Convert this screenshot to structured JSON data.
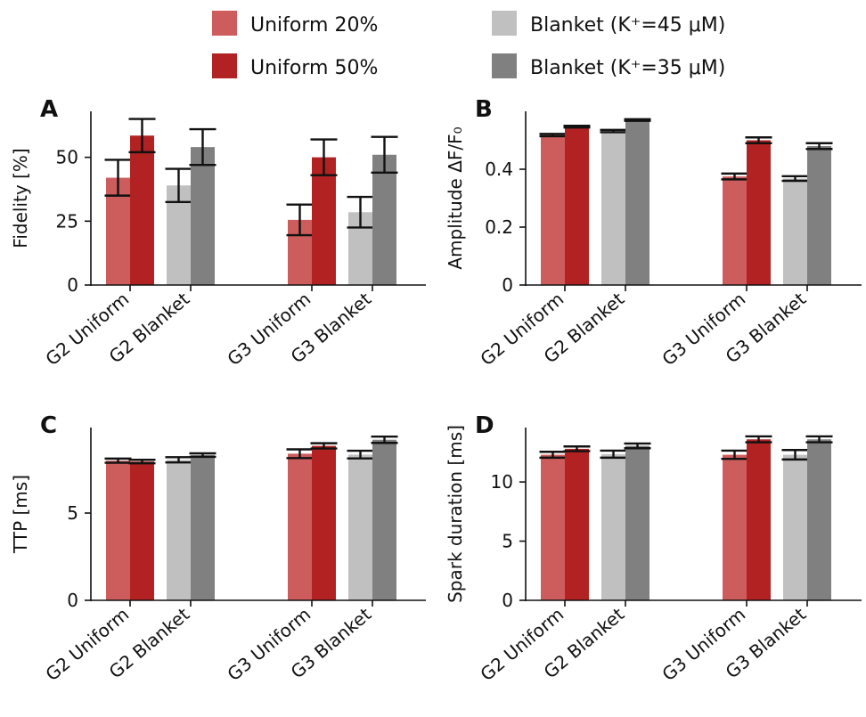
{
  "legend": {
    "items": [
      {
        "label": "Uniform 20%",
        "color": "#cd5c5c"
      },
      {
        "label": "Uniform 50%",
        "color": "#b22222"
      },
      {
        "label": "Blanket (K⁺=45 μM)",
        "color": "#c0c0c0"
      },
      {
        "label": "Blanket (K⁺=35 μM)",
        "color": "#808080"
      }
    ]
  },
  "chart_data": [
    {
      "type": "bar",
      "panel_letter": "A",
      "ylabel": "Fidelity [%]",
      "categories": [
        "G2 Uniform",
        "G2 Blanket",
        "G3 Uniform",
        "G3 Blanket"
      ],
      "ylim": [
        0,
        68
      ],
      "yticks": [
        0,
        25,
        50
      ],
      "series": [
        {
          "group": "G2 Uniform",
          "color": "#cd5c5c",
          "value": 42,
          "err": 7
        },
        {
          "group": "G2 Uniform",
          "color": "#b22222",
          "value": 58.5,
          "err": 6.5
        },
        {
          "group": "G2 Blanket",
          "color": "#c0c0c0",
          "value": 39,
          "err": 6.5
        },
        {
          "group": "G2 Blanket",
          "color": "#808080",
          "value": 54,
          "err": 7
        },
        {
          "group": "G3 Uniform",
          "color": "#cd5c5c",
          "value": 25.5,
          "err": 6
        },
        {
          "group": "G3 Uniform",
          "color": "#b22222",
          "value": 50,
          "err": 7
        },
        {
          "group": "G3 Blanket",
          "color": "#c0c0c0",
          "value": 28.5,
          "err": 6
        },
        {
          "group": "G3 Blanket",
          "color": "#808080",
          "value": 51,
          "err": 7
        }
      ]
    },
    {
      "type": "bar",
      "panel_letter": "B",
      "ylabel": "Amplitude ΔF/F₀",
      "categories": [
        "G2 Uniform",
        "G2 Blanket",
        "G3 Uniform",
        "G3 Blanket"
      ],
      "ylim": [
        0,
        0.6
      ],
      "yticks": [
        0.0,
        0.2,
        0.4
      ],
      "series": [
        {
          "group": "G2 Uniform",
          "color": "#cd5c5c",
          "value": 0.518,
          "err": 0.004
        },
        {
          "group": "G2 Uniform",
          "color": "#b22222",
          "value": 0.547,
          "err": 0.003
        },
        {
          "group": "G2 Blanket",
          "color": "#c0c0c0",
          "value": 0.532,
          "err": 0.004
        },
        {
          "group": "G2 Blanket",
          "color": "#808080",
          "value": 0.57,
          "err": 0.003
        },
        {
          "group": "G3 Uniform",
          "color": "#cd5c5c",
          "value": 0.375,
          "err": 0.01
        },
        {
          "group": "G3 Uniform",
          "color": "#b22222",
          "value": 0.5,
          "err": 0.01
        },
        {
          "group": "G3 Blanket",
          "color": "#c0c0c0",
          "value": 0.368,
          "err": 0.008
        },
        {
          "group": "G3 Blanket",
          "color": "#808080",
          "value": 0.48,
          "err": 0.01
        }
      ]
    },
    {
      "type": "bar",
      "panel_letter": "C",
      "ylabel": "TTP [ms]",
      "categories": [
        "G2 Uniform",
        "G2 Blanket",
        "G3 Uniform",
        "G3 Blanket"
      ],
      "ylim": [
        0,
        9.9
      ],
      "yticks": [
        0,
        5
      ],
      "series": [
        {
          "group": "G2 Uniform",
          "color": "#cd5c5c",
          "value": 8.0,
          "err": 0.12
        },
        {
          "group": "G2 Uniform",
          "color": "#b22222",
          "value": 7.95,
          "err": 0.1
        },
        {
          "group": "G2 Blanket",
          "color": "#c0c0c0",
          "value": 8.05,
          "err": 0.15
        },
        {
          "group": "G2 Blanket",
          "color": "#808080",
          "value": 8.32,
          "err": 0.1
        },
        {
          "group": "G3 Uniform",
          "color": "#cd5c5c",
          "value": 8.4,
          "err": 0.25
        },
        {
          "group": "G3 Uniform",
          "color": "#b22222",
          "value": 8.85,
          "err": 0.15
        },
        {
          "group": "G3 Blanket",
          "color": "#c0c0c0",
          "value": 8.35,
          "err": 0.22
        },
        {
          "group": "G3 Blanket",
          "color": "#808080",
          "value": 9.2,
          "err": 0.18
        }
      ]
    },
    {
      "type": "bar",
      "panel_letter": "D",
      "ylabel": "Spark duration [ms]",
      "categories": [
        "G2 Uniform",
        "G2 Blanket",
        "G3 Uniform",
        "G3 Blanket"
      ],
      "ylim": [
        0,
        14.6
      ],
      "yticks": [
        0,
        5,
        10
      ],
      "series": [
        {
          "group": "G2 Uniform",
          "color": "#cd5c5c",
          "value": 12.3,
          "err": 0.25
        },
        {
          "group": "G2 Uniform",
          "color": "#b22222",
          "value": 12.8,
          "err": 0.2
        },
        {
          "group": "G2 Blanket",
          "color": "#c0c0c0",
          "value": 12.35,
          "err": 0.3
        },
        {
          "group": "G2 Blanket",
          "color": "#808080",
          "value": 13.05,
          "err": 0.2
        },
        {
          "group": "G3 Uniform",
          "color": "#cd5c5c",
          "value": 12.3,
          "err": 0.35
        },
        {
          "group": "G3 Uniform",
          "color": "#b22222",
          "value": 13.6,
          "err": 0.25
        },
        {
          "group": "G3 Blanket",
          "color": "#c0c0c0",
          "value": 12.3,
          "err": 0.4
        },
        {
          "group": "G3 Blanket",
          "color": "#808080",
          "value": 13.6,
          "err": 0.25
        }
      ]
    }
  ]
}
